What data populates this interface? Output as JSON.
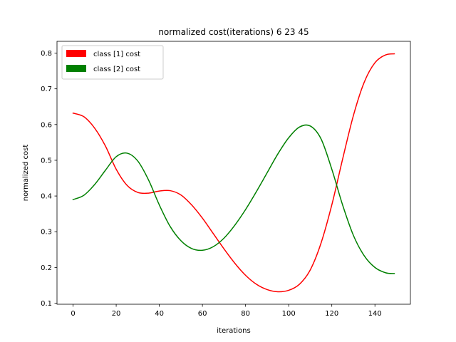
{
  "chart_data": {
    "type": "line",
    "title": "normalized cost(iterations) 6  23 45",
    "xlabel": "iterations",
    "ylabel": "normalized cost",
    "xlim": [
      -7.45,
      156.45
    ],
    "ylim": [
      0.097,
      0.833
    ],
    "x_ticks": [
      0,
      20,
      40,
      60,
      80,
      100,
      120,
      140
    ],
    "y_ticks": [
      0.1,
      0.2,
      0.3,
      0.4,
      0.5,
      0.6,
      0.7,
      0.8
    ],
    "grid": false,
    "legend": {
      "placement": "top-left",
      "style": "patch"
    },
    "series": [
      {
        "name": "class [1] cost",
        "color": "#ff0000",
        "points": [
          [
            0,
            0.632
          ],
          [
            5,
            0.622
          ],
          [
            10,
            0.59
          ],
          [
            15,
            0.54
          ],
          [
            20,
            0.475
          ],
          [
            25,
            0.43
          ],
          [
            30,
            0.41
          ],
          [
            35,
            0.408
          ],
          [
            40,
            0.414
          ],
          [
            45,
            0.415
          ],
          [
            50,
            0.403
          ],
          [
            55,
            0.375
          ],
          [
            60,
            0.338
          ],
          [
            65,
            0.295
          ],
          [
            70,
            0.252
          ],
          [
            75,
            0.212
          ],
          [
            80,
            0.178
          ],
          [
            85,
            0.153
          ],
          [
            90,
            0.138
          ],
          [
            95,
            0.132
          ],
          [
            100,
            0.136
          ],
          [
            105,
            0.153
          ],
          [
            110,
            0.193
          ],
          [
            115,
            0.268
          ],
          [
            120,
            0.375
          ],
          [
            125,
            0.503
          ],
          [
            130,
            0.625
          ],
          [
            135,
            0.718
          ],
          [
            140,
            0.773
          ],
          [
            145,
            0.795
          ],
          [
            149,
            0.798
          ]
        ]
      },
      {
        "name": "class [2] cost",
        "color": "#008000",
        "points": [
          [
            0,
            0.39
          ],
          [
            5,
            0.402
          ],
          [
            10,
            0.432
          ],
          [
            15,
            0.472
          ],
          [
            20,
            0.51
          ],
          [
            25,
            0.52
          ],
          [
            30,
            0.498
          ],
          [
            35,
            0.445
          ],
          [
            40,
            0.375
          ],
          [
            45,
            0.315
          ],
          [
            50,
            0.275
          ],
          [
            55,
            0.253
          ],
          [
            60,
            0.248
          ],
          [
            65,
            0.258
          ],
          [
            70,
            0.282
          ],
          [
            75,
            0.318
          ],
          [
            80,
            0.362
          ],
          [
            85,
            0.412
          ],
          [
            90,
            0.465
          ],
          [
            95,
            0.518
          ],
          [
            100,
            0.563
          ],
          [
            105,
            0.593
          ],
          [
            110,
            0.596
          ],
          [
            115,
            0.56
          ],
          [
            120,
            0.475
          ],
          [
            125,
            0.375
          ],
          [
            130,
            0.29
          ],
          [
            135,
            0.233
          ],
          [
            140,
            0.2
          ],
          [
            145,
            0.185
          ],
          [
            149,
            0.183
          ]
        ]
      }
    ]
  }
}
